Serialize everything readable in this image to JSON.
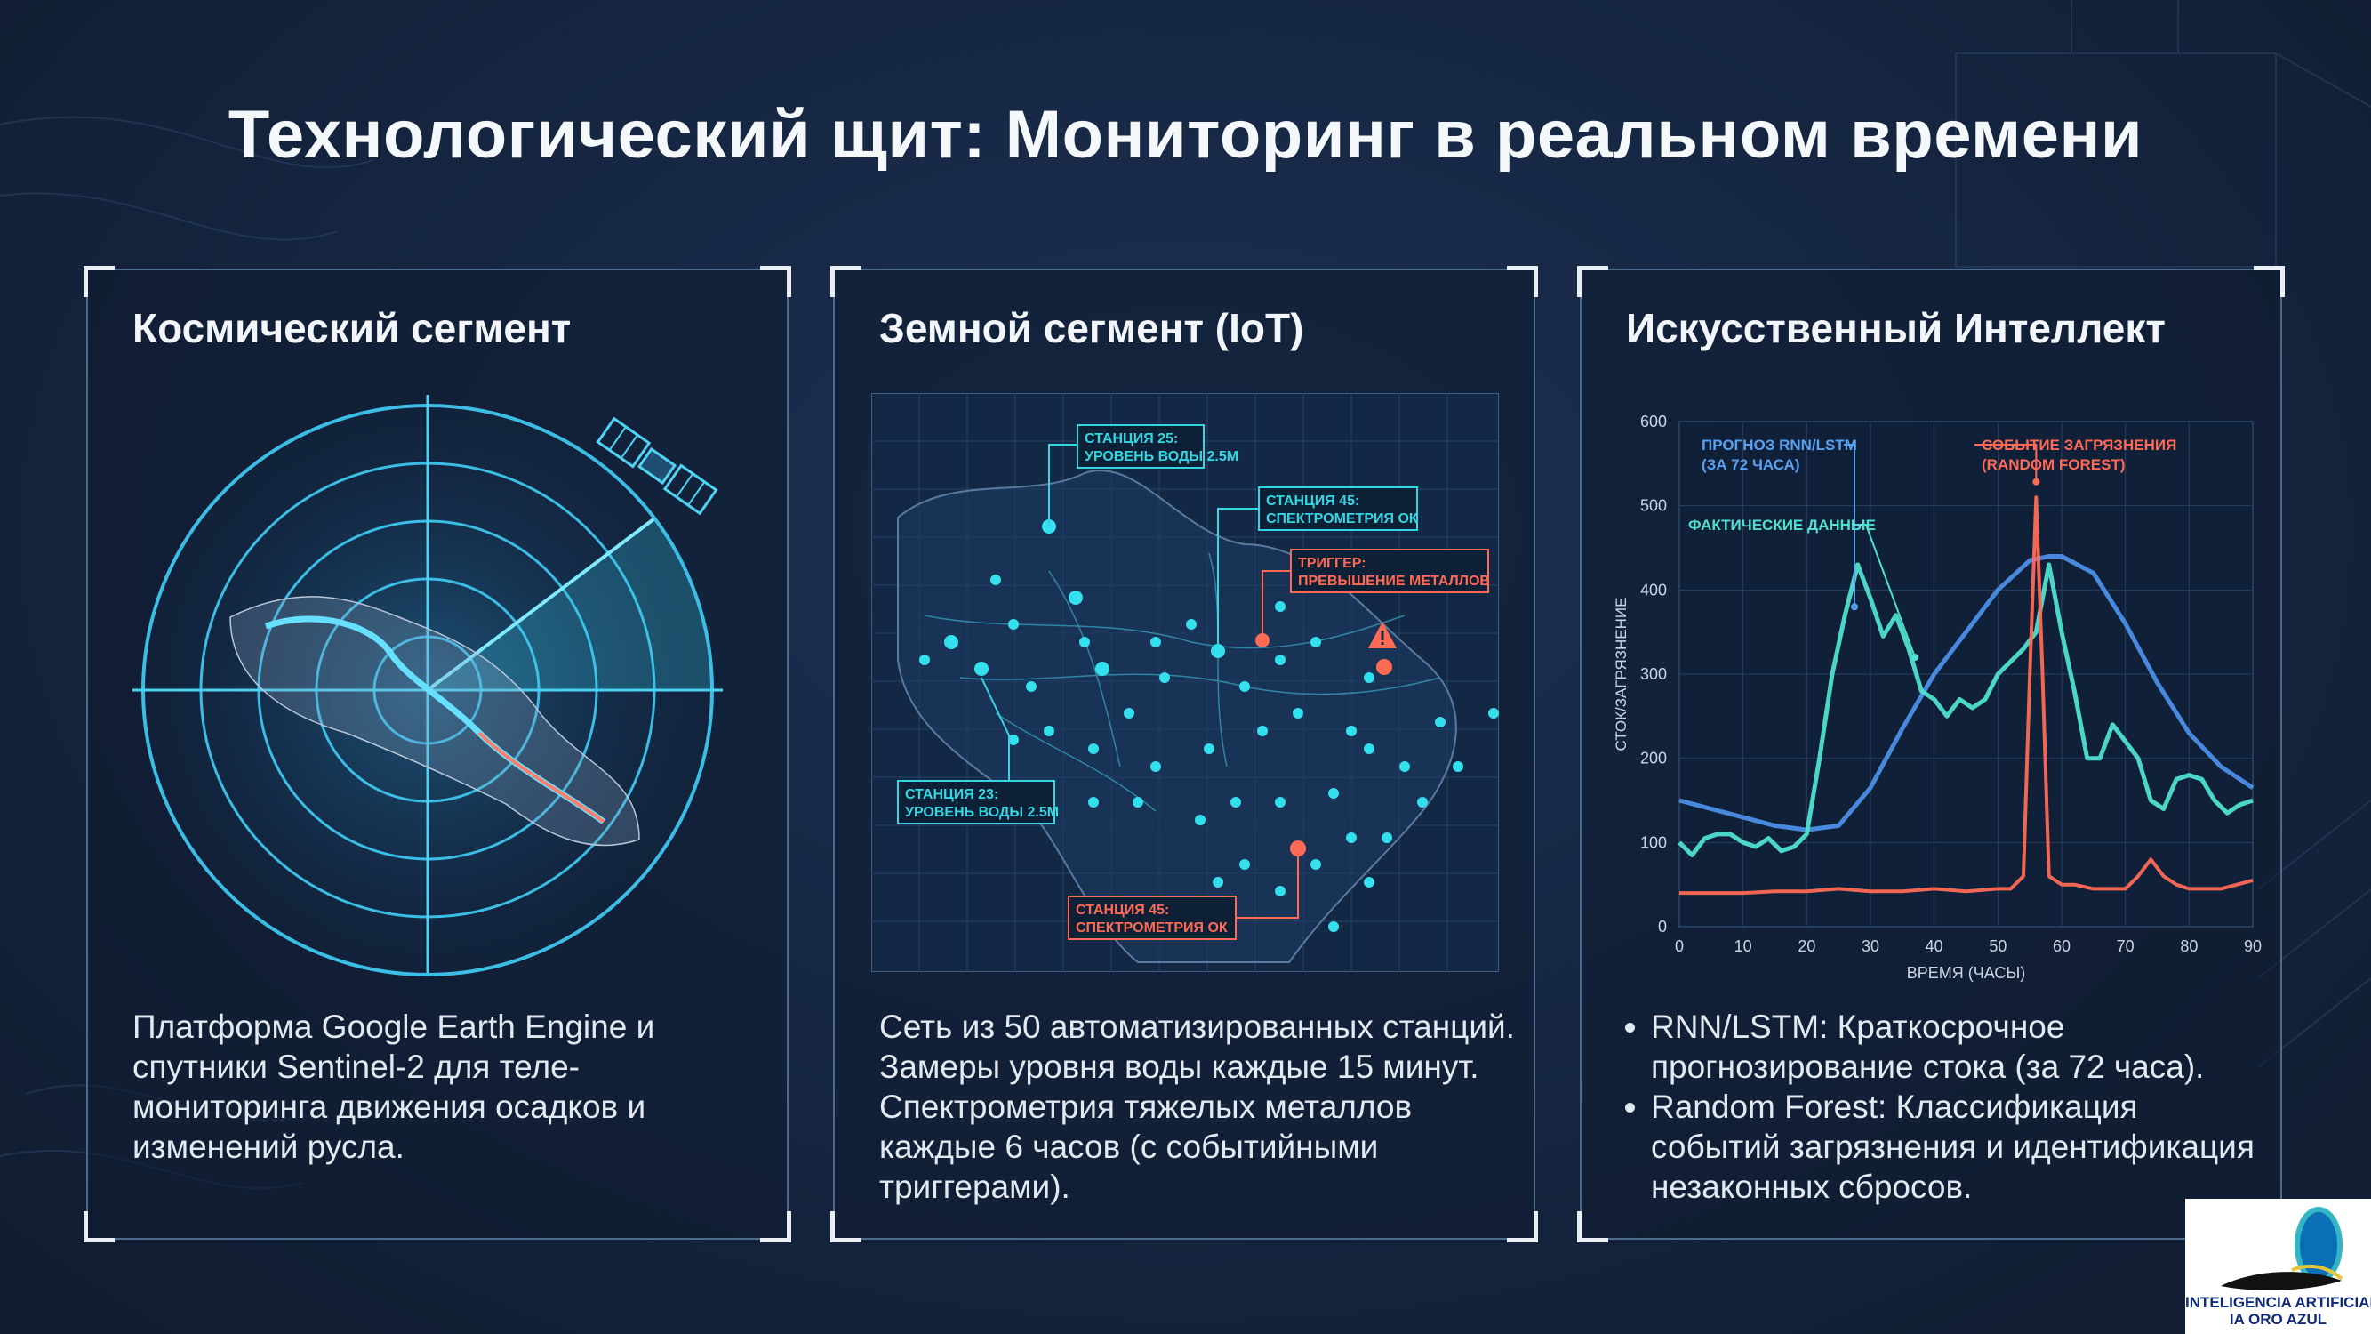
{
  "title": "Технологический щит: Мониторинг в реальном времени",
  "panels": {
    "space": {
      "title": "Космический сегмент",
      "icons": [
        "satellite-icon",
        "radar-icon"
      ],
      "text": "Платформа Google Earth Engine и спутники Sentinel-2 для теле-мониторинга движения осадков и изменений русла."
    },
    "ground": {
      "title": "Земной сегмент (IoT)",
      "map_labels": [
        {
          "line1": "СТАНЦИЯ 25:",
          "line2": "УРОВЕНЬ ВОДЫ 2.5M",
          "color": "#35d6e3"
        },
        {
          "line1": "СТАНЦИЯ 45:",
          "line2": "СПЕКТРОМЕТРИЯ ОК",
          "color": "#35d6e3"
        },
        {
          "line1": "ТРИГГЕР:",
          "line2": "ПРЕВЫШЕНИЕ МЕТАЛЛОВ",
          "color": "#ff6a55"
        },
        {
          "line1": "СТАНЦИЯ 23:",
          "line2": "УРОВЕНЬ ВОДЫ 2.5M",
          "color": "#35d6e3"
        },
        {
          "line1": "СТАНЦИЯ 45:",
          "line2": "СПЕКТРОМЕТРИЯ ОК",
          "color": "#ff6a55"
        }
      ],
      "icons": [
        "warning-icon"
      ],
      "text": "Сеть из 50 автоматизированных станций. Замеры уровня воды каждые 15 минут. Спектрометрия тяжелых металлов каждые 6 часов (с событийными триггерами)."
    },
    "ai": {
      "title": "Искусственный Интеллект",
      "bullets": [
        "RNN/LSTM: Краткосрочное прогнозирование стока (за 72 часа).",
        "Random Forest: Классификация событий загрязнения и идентификация незаконных сбросов."
      ]
    }
  },
  "chart_data": {
    "type": "line",
    "xlabel": "ВРЕМЯ (ЧАСЫ)",
    "ylabel": "СТОК/ЗАГРЯЗНЕНИЕ",
    "xlim": [
      0,
      90
    ],
    "ylim": [
      0,
      600
    ],
    "xticks": [
      0,
      10,
      20,
      30,
      40,
      50,
      60,
      70,
      80,
      90
    ],
    "yticks": [
      0,
      100,
      200,
      300,
      400,
      500,
      600
    ],
    "grid": true,
    "annotations": [
      {
        "text_lines": [
          "ПРОГНОЗ RNN/LSTM",
          "(ЗА 72 ЧАСА)"
        ],
        "series": "forecast",
        "color": "#5aa0f0"
      },
      {
        "text_lines": [
          "ФАКТИЧЕСКИЕ ДАННЫЕ"
        ],
        "series": "actual",
        "color": "#4fe0d0"
      },
      {
        "text_lines": [
          "СОБЫТИЕ ЗАГРЯЗНЕНИЯ",
          "(RANDOM FOREST)"
        ],
        "series": "pollution",
        "color": "#ff6a55"
      }
    ],
    "series": [
      {
        "key": "actual",
        "color": "#4fe0d0",
        "x": [
          0,
          2,
          4,
          6,
          8,
          10,
          12,
          14,
          16,
          18,
          20,
          22,
          24,
          26,
          28,
          30,
          32,
          34,
          36,
          38,
          40,
          42,
          44,
          46,
          48,
          50,
          52,
          54,
          56,
          58,
          60,
          62,
          64,
          66,
          68,
          70,
          72,
          74,
          76,
          78,
          80,
          82,
          84,
          86,
          88,
          90
        ],
        "y": [
          100,
          85,
          105,
          110,
          110,
          100,
          95,
          105,
          90,
          95,
          110,
          200,
          300,
          370,
          430,
          390,
          345,
          370,
          330,
          280,
          270,
          250,
          270,
          260,
          270,
          300,
          315,
          330,
          350,
          430,
          350,
          280,
          200,
          200,
          240,
          220,
          200,
          150,
          140,
          175,
          180,
          175,
          150,
          135,
          145,
          150
        ]
      },
      {
        "key": "forecast",
        "color": "#4d8fe6",
        "x": [
          0,
          5,
          10,
          15,
          20,
          25,
          30,
          35,
          40,
          45,
          50,
          55,
          58,
          60,
          65,
          70,
          75,
          80,
          85,
          90
        ],
        "y": [
          150,
          140,
          130,
          120,
          115,
          120,
          165,
          235,
          300,
          350,
          400,
          435,
          440,
          440,
          420,
          360,
          290,
          230,
          190,
          165
        ]
      },
      {
        "key": "pollution",
        "color": "#ff6a55",
        "x": [
          0,
          5,
          10,
          15,
          20,
          25,
          30,
          35,
          40,
          45,
          50,
          52,
          54,
          55,
          56,
          57,
          58,
          60,
          62,
          65,
          70,
          72,
          74,
          76,
          78,
          80,
          85,
          90
        ],
        "y": [
          40,
          40,
          40,
          42,
          42,
          45,
          42,
          42,
          45,
          42,
          45,
          45,
          60,
          300,
          510,
          300,
          60,
          50,
          50,
          45,
          45,
          60,
          80,
          60,
          50,
          45,
          45,
          55
        ]
      }
    ]
  },
  "logo": {
    "line1": "INTELIGENCIA ARTIFICIAL",
    "line2": "IA ORO AZUL"
  }
}
